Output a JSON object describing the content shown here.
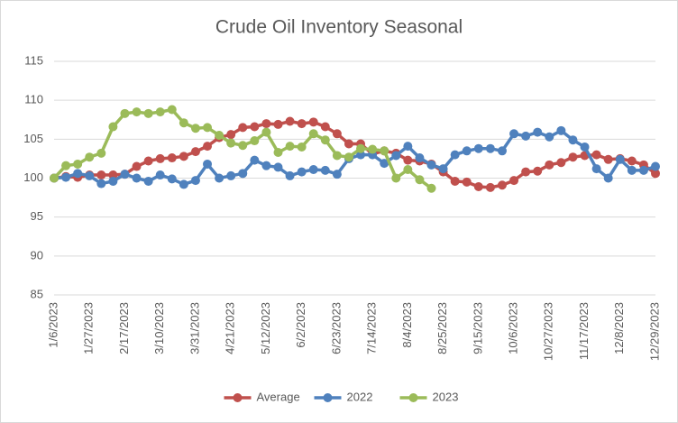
{
  "chart_data": {
    "type": "line",
    "title": "Crude Oil Inventory Seasonal",
    "categories": [
      "1/6/2023",
      null,
      null,
      "1/27/2023",
      null,
      null,
      "2/17/2023",
      null,
      null,
      "3/10/2023",
      null,
      null,
      "3/31/2023",
      null,
      null,
      "4/21/2023",
      null,
      null,
      "5/12/2023",
      null,
      null,
      "6/2/2023",
      null,
      null,
      "6/23/2023",
      null,
      null,
      "7/14/2023",
      null,
      null,
      "8/4/2023",
      null,
      null,
      "8/25/2023",
      null,
      null,
      "9/15/2023",
      null,
      null,
      "10/6/2023",
      null,
      null,
      "10/27/2023",
      null,
      null,
      "11/17/2023",
      null,
      null,
      "12/8/2023",
      null,
      null,
      "12/29/2023"
    ],
    "series": [
      {
        "name": "Average",
        "color": "#c0504d",
        "values": [
          100,
          100.2,
          100.1,
          100.4,
          100.4,
          100.4,
          100.5,
          101.5,
          102.2,
          102.5,
          102.6,
          102.8,
          103.4,
          104.1,
          105.2,
          105.6,
          106.5,
          106.6,
          107,
          106.9,
          107.3,
          107,
          107.2,
          106.6,
          105.7,
          104.4,
          104.4,
          103.1,
          103.5,
          103.2,
          102.3,
          102.2,
          101.8,
          100.8,
          99.6,
          99.5,
          98.9,
          98.8,
          99.1,
          99.7,
          100.8,
          100.9,
          101.7,
          102,
          102.7,
          102.9,
          103,
          102.4,
          102.5,
          102.2,
          101.7,
          100.6
        ]
      },
      {
        "name": "2022",
        "color": "#4f81bd",
        "values": [
          100,
          100.1,
          100.6,
          100.3,
          99.3,
          99.6,
          100.5,
          100,
          99.6,
          100.4,
          99.9,
          99.2,
          99.7,
          101.8,
          100,
          100.3,
          100.6,
          102.3,
          101.6,
          101.4,
          100.3,
          100.8,
          101.1,
          101,
          100.5,
          102.5,
          103,
          103,
          101.9,
          102.9,
          104.1,
          102.6,
          101.7,
          101.2,
          103,
          103.5,
          103.8,
          103.8,
          103.5,
          105.7,
          105.4,
          105.9,
          105.3,
          106.1,
          104.9,
          104,
          101.2,
          100,
          102.4,
          101,
          101,
          101.5
        ]
      },
      {
        "name": "2023",
        "color": "#9bbb59",
        "values": [
          100,
          101.6,
          101.8,
          102.7,
          103.2,
          106.6,
          108.3,
          108.5,
          108.3,
          108.5,
          108.8,
          107.1,
          106.4,
          106.5,
          105.5,
          104.5,
          104.2,
          104.8,
          105.9,
          103.3,
          104.1,
          104,
          105.7,
          104.9,
          102.9,
          102.7,
          103.8,
          103.7,
          103.5,
          100,
          101.1,
          99.8,
          98.7,
          null,
          null,
          null,
          null,
          null,
          null,
          null,
          null,
          null,
          null,
          null,
          null,
          null,
          null,
          null,
          null,
          null,
          null,
          null
        ]
      }
    ],
    "ylim": [
      85,
      115
    ],
    "yticks": [
      85,
      90,
      95,
      100,
      105,
      110,
      115
    ],
    "grid": true,
    "legend": "bottom"
  }
}
